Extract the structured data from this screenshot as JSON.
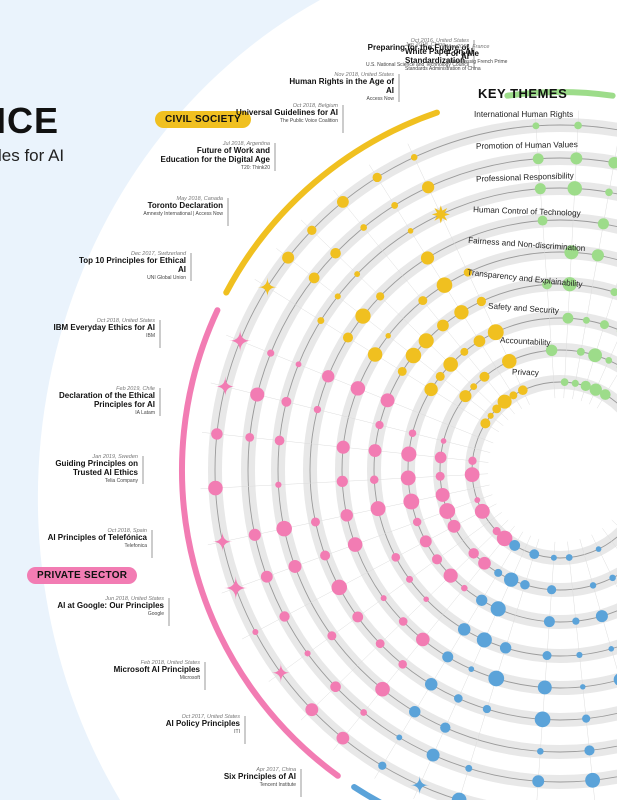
{
  "poster": {
    "title": "ICE",
    "subtitle": "les for AI",
    "key_themes": "KEY THEMES"
  },
  "groups": {
    "civil_society": "CIVIL SOCIETY",
    "private_sector": "PRIVATE SECTOR"
  },
  "themes": [
    "International Human Rights",
    "Promotion of Human Values",
    "Professional Responsibility",
    "Human Control of Technology",
    "Fairness and Non-discrimination",
    "Transparency and Explainability",
    "Safety and Security",
    "Accountability",
    "Privacy"
  ],
  "documents": [
    {
      "meta": "Oct 2016, United States",
      "title": "Preparing for the Future of AI",
      "org": "U.S. National Science and Technology Council"
    },
    {
      "meta": "Jan 2018, China",
      "title": "White Paper on AI Standardization",
      "org": "Standards Administration of China"
    },
    {
      "meta": "Mar 2018, France",
      "title": "For a Me",
      "org": "Mission assig French Prime"
    },
    {
      "meta": "Nov 2018, United States",
      "title": "Human Rights in the Age of AI",
      "org": "Access Now"
    },
    {
      "meta": "Oct 2018, Belgium",
      "title": "Universal Guidelines for AI",
      "org": "The Public Voice Coalition"
    },
    {
      "meta": "Jul 2018, Argentina",
      "title": "Future of Work and Education for the Digital Age",
      "org": "T20: Think20"
    },
    {
      "meta": "May 2018, Canada",
      "title": "Toronto Declaration",
      "org": "Amnesty International | Access Now"
    },
    {
      "meta": "Dec 2017, Switzerland",
      "title": "Top 10 Principles for Ethical AI",
      "org": "UNI Global Union"
    },
    {
      "meta": "Oct 2018, United States",
      "title": "IBM Everyday Ethics for AI",
      "org": "IBM"
    },
    {
      "meta": "Feb 2019, Chile",
      "title": "Declaration of the Ethical Principles for AI",
      "org": "IA Latam"
    },
    {
      "meta": "Jan 2019, Sweden",
      "title": "Guiding Principles on Trusted AI Ethics",
      "org": "Telia Company"
    },
    {
      "meta": "Oct 2018, Spain",
      "title": "AI Principles of Telefónica",
      "org": "Telefonica"
    },
    {
      "meta": "Jun 2018, United States",
      "title": "AI at Google: Our Principles",
      "org": "Google"
    },
    {
      "meta": "Feb 2018, United States",
      "title": "Microsoft AI Principles",
      "org": "Microsoft"
    },
    {
      "meta": "Oct 2017, United States",
      "title": "AI Policy Principles",
      "org": "ITI"
    },
    {
      "meta": "Apr 2017, China",
      "title": "Six Principles of AI",
      "org": "Tencent Institute"
    }
  ],
  "colors": {
    "civil_society": "#f0c020",
    "private_sector": "#f27cb3",
    "government": "#5ba3d9",
    "intergovernmental": "#9ddc8a",
    "multistakeholder": "#ec7a2a",
    "ring": "#e8e8e8",
    "background_arc": "#eaf3fc"
  }
}
